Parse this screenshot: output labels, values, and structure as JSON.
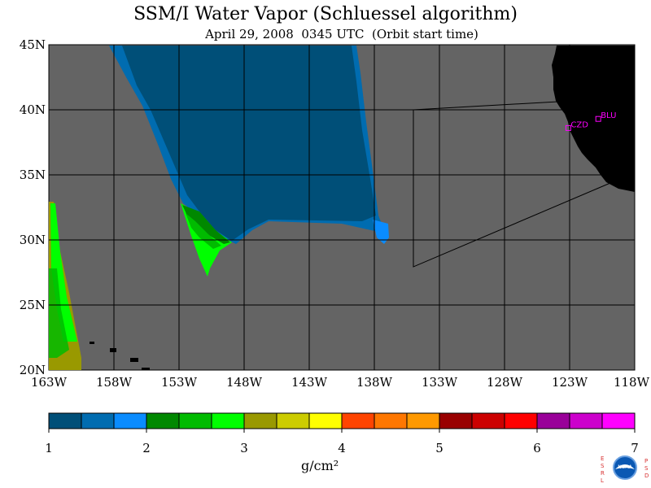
{
  "header": {
    "title": "SSM/I Water Vapor (Schluessel algorithm)",
    "subtitle": "April 29, 2008  0345 UTC  (Orbit start time)"
  },
  "map": {
    "lat_labels": [
      "45N",
      "40N",
      "35N",
      "30N",
      "25N",
      "20N"
    ],
    "lon_labels": [
      "163W",
      "158W",
      "153W",
      "148W",
      "143W",
      "138W",
      "133W",
      "128W",
      "123W",
      "118W"
    ],
    "stations": [
      {
        "id": "CZD",
        "lon": -123.1,
        "lat": 38.6
      },
      {
        "id": "BLU",
        "lon": -120.8,
        "lat": 39.3
      }
    ],
    "colors": {
      "land": "#000000",
      "no_data": "#646464",
      "grid": "#000000"
    }
  },
  "colorbar": {
    "unit": "g/cm²",
    "tick_labels": [
      "1",
      "2",
      "3",
      "4",
      "5",
      "6",
      "7"
    ],
    "range": [
      1,
      7
    ],
    "colors": [
      "#004f78",
      "#006cb0",
      "#0a8cff",
      "#008800",
      "#00bb00",
      "#00ff00",
      "#999900",
      "#cccc00",
      "#ffff00",
      "#ff4400",
      "#ff7700",
      "#ff9900",
      "#990000",
      "#cc0000",
      "#ff0000",
      "#990099",
      "#cc00cc",
      "#ff00ff"
    ]
  },
  "logo": {
    "text": "NOAA",
    "left_letters": [
      "E",
      "S",
      "R",
      "L"
    ],
    "right_letters": [
      "P",
      "S",
      "D"
    ]
  }
}
